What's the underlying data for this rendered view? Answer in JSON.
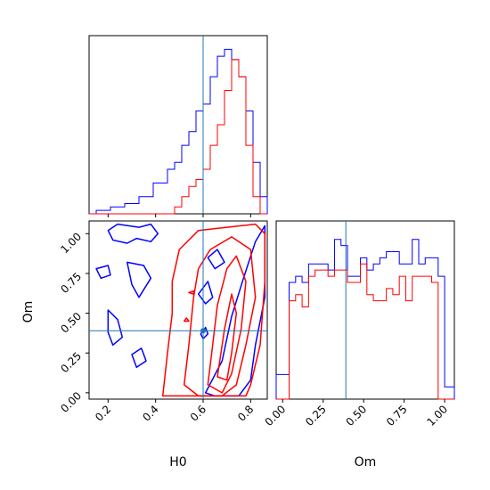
{
  "chart_data": {
    "type": "corner",
    "parameters": [
      "H0",
      "Om"
    ],
    "truths": {
      "H0": 0.6,
      "Om": 0.39
    },
    "series_colors": {
      "blue": "#0000ff",
      "red": "#ff0000",
      "truth": "#1f77b4"
    },
    "h0_hist": {
      "xlim": [
        0.12,
        0.87
      ],
      "bin_edges": [
        0.12,
        0.15,
        0.18,
        0.21,
        0.24,
        0.27,
        0.3,
        0.33,
        0.36,
        0.39,
        0.42,
        0.45,
        0.48,
        0.51,
        0.54,
        0.57,
        0.6,
        0.63,
        0.66,
        0.69,
        0.72,
        0.75,
        0.78,
        0.81,
        0.84,
        0.87
      ],
      "blue_counts": [
        0,
        1,
        1,
        2,
        2,
        3,
        3,
        5,
        5,
        9,
        9,
        13,
        15,
        20,
        24,
        30,
        32,
        40,
        46,
        48,
        45,
        40,
        30,
        15,
        5
      ],
      "red_counts": [
        0,
        0,
        0,
        0,
        0,
        0,
        0,
        0,
        0,
        0,
        0,
        0,
        2,
        5,
        8,
        10,
        13,
        20,
        26,
        36,
        45,
        40,
        20,
        5,
        0
      ],
      "ymax": 52
    },
    "om_hist": {
      "xlim": [
        -0.04,
        1.06
      ],
      "bin_edges": [
        -0.04,
        0.0,
        0.04,
        0.08,
        0.12,
        0.16,
        0.2,
        0.24,
        0.28,
        0.32,
        0.36,
        0.4,
        0.44,
        0.48,
        0.52,
        0.56,
        0.6,
        0.64,
        0.68,
        0.72,
        0.76,
        0.8,
        0.84,
        0.88,
        0.92,
        0.96,
        1.0,
        1.04,
        1.06
      ],
      "blue_counts": [
        8,
        8,
        38,
        40,
        38,
        44,
        44,
        44,
        42,
        52,
        50,
        40,
        40,
        46,
        42,
        44,
        46,
        48,
        48,
        44,
        44,
        52,
        44,
        46,
        46,
        40,
        4,
        4
      ],
      "red_counts": [
        0,
        0,
        32,
        34,
        30,
        40,
        42,
        42,
        40,
        42,
        42,
        38,
        38,
        44,
        34,
        32,
        32,
        36,
        34,
        40,
        32,
        40,
        40,
        40,
        38,
        0,
        0,
        0
      ],
      "ymax": 58
    },
    "scatter_2d": {
      "xlim": [
        0.12,
        0.87
      ],
      "ylim": [
        -0.04,
        1.08
      ],
      "blue_contours": [
        [
          [
            0.2,
            1.02
          ],
          [
            0.24,
            1.06
          ],
          [
            0.33,
            1.04
          ],
          [
            0.38,
            1.06
          ],
          [
            0.41,
            1.0
          ],
          [
            0.38,
            0.95
          ],
          [
            0.32,
            0.97
          ],
          [
            0.28,
            0.94
          ],
          [
            0.22,
            0.96
          ]
        ],
        [
          [
            0.15,
            0.78
          ],
          [
            0.2,
            0.8
          ],
          [
            0.21,
            0.74
          ],
          [
            0.17,
            0.72
          ]
        ],
        [
          [
            0.28,
            0.82
          ],
          [
            0.35,
            0.8
          ],
          [
            0.38,
            0.72
          ],
          [
            0.33,
            0.6
          ],
          [
            0.3,
            0.68
          ]
        ],
        [
          [
            0.2,
            0.52
          ],
          [
            0.24,
            0.46
          ],
          [
            0.26,
            0.35
          ],
          [
            0.22,
            0.3
          ],
          [
            0.2,
            0.38
          ]
        ],
        [
          [
            0.3,
            0.24
          ],
          [
            0.34,
            0.28
          ],
          [
            0.36,
            0.2
          ],
          [
            0.32,
            0.16
          ]
        ],
        [
          [
            0.58,
            0.62
          ],
          [
            0.62,
            0.7
          ],
          [
            0.64,
            0.6
          ],
          [
            0.61,
            0.56
          ]
        ],
        [
          [
            0.62,
            0.85
          ],
          [
            0.66,
            0.9
          ],
          [
            0.69,
            0.82
          ],
          [
            0.65,
            0.78
          ]
        ],
        [
          [
            0.59,
            0.37
          ],
          [
            0.61,
            0.41
          ],
          [
            0.62,
            0.37
          ],
          [
            0.6,
            0.34
          ]
        ],
        [
          [
            0.61,
            0.0
          ],
          [
            0.68,
            0.2
          ],
          [
            0.72,
            0.48
          ],
          [
            0.77,
            0.72
          ],
          [
            0.82,
            0.95
          ],
          [
            0.86,
            1.05
          ],
          [
            0.86,
            0.6
          ],
          [
            0.82,
            0.3
          ],
          [
            0.8,
            0.08
          ],
          [
            0.75,
            -0.02
          ],
          [
            0.65,
            -0.02
          ]
        ]
      ],
      "red_contours": [
        [
          [
            0.43,
            -0.02
          ],
          [
            0.45,
            0.25
          ],
          [
            0.47,
            0.5
          ],
          [
            0.47,
            0.7
          ],
          [
            0.5,
            0.9
          ],
          [
            0.58,
            1.02
          ],
          [
            0.7,
            1.04
          ],
          [
            0.82,
            1.06
          ],
          [
            0.86,
            1.0
          ],
          [
            0.86,
            0.7
          ],
          [
            0.84,
            0.3
          ],
          [
            0.8,
            0.05
          ],
          [
            0.78,
            -0.02
          ]
        ],
        [
          [
            0.52,
            0.05
          ],
          [
            0.54,
            0.3
          ],
          [
            0.56,
            0.6
          ],
          [
            0.58,
            0.78
          ],
          [
            0.63,
            0.9
          ],
          [
            0.72,
            0.98
          ],
          [
            0.8,
            0.9
          ],
          [
            0.82,
            0.6
          ],
          [
            0.78,
            0.3
          ],
          [
            0.74,
            0.05
          ],
          [
            0.68,
            -0.02
          ],
          [
            0.58,
            -0.02
          ]
        ],
        [
          [
            0.62,
            0.05
          ],
          [
            0.64,
            0.3
          ],
          [
            0.66,
            0.55
          ],
          [
            0.7,
            0.78
          ],
          [
            0.74,
            0.86
          ],
          [
            0.78,
            0.7
          ],
          [
            0.76,
            0.4
          ],
          [
            0.72,
            0.12
          ],
          [
            0.68,
            0.0
          ]
        ],
        [
          [
            0.66,
            0.1
          ],
          [
            0.69,
            0.4
          ],
          [
            0.72,
            0.62
          ],
          [
            0.74,
            0.5
          ],
          [
            0.72,
            0.25
          ],
          [
            0.7,
            0.08
          ]
        ],
        [
          [
            0.54,
            0.63
          ],
          [
            0.56,
            0.64
          ],
          [
            0.56,
            0.62
          ]
        ],
        [
          [
            0.52,
            0.45
          ],
          [
            0.53,
            0.47
          ],
          [
            0.54,
            0.45
          ]
        ]
      ]
    },
    "h0_ticks": [
      "0.2",
      "0.4",
      "0.6",
      "0.8"
    ],
    "h0_tick_values": [
      0.2,
      0.4,
      0.6,
      0.8
    ],
    "om_ticks": [
      "0.00",
      "0.25",
      "0.50",
      "0.75",
      "1.00"
    ],
    "om_tick_values": [
      0.0,
      0.25,
      0.5,
      0.75,
      1.0
    ],
    "xlabel_left": "H0",
    "xlabel_right": "Om",
    "ylabel": "Om"
  }
}
